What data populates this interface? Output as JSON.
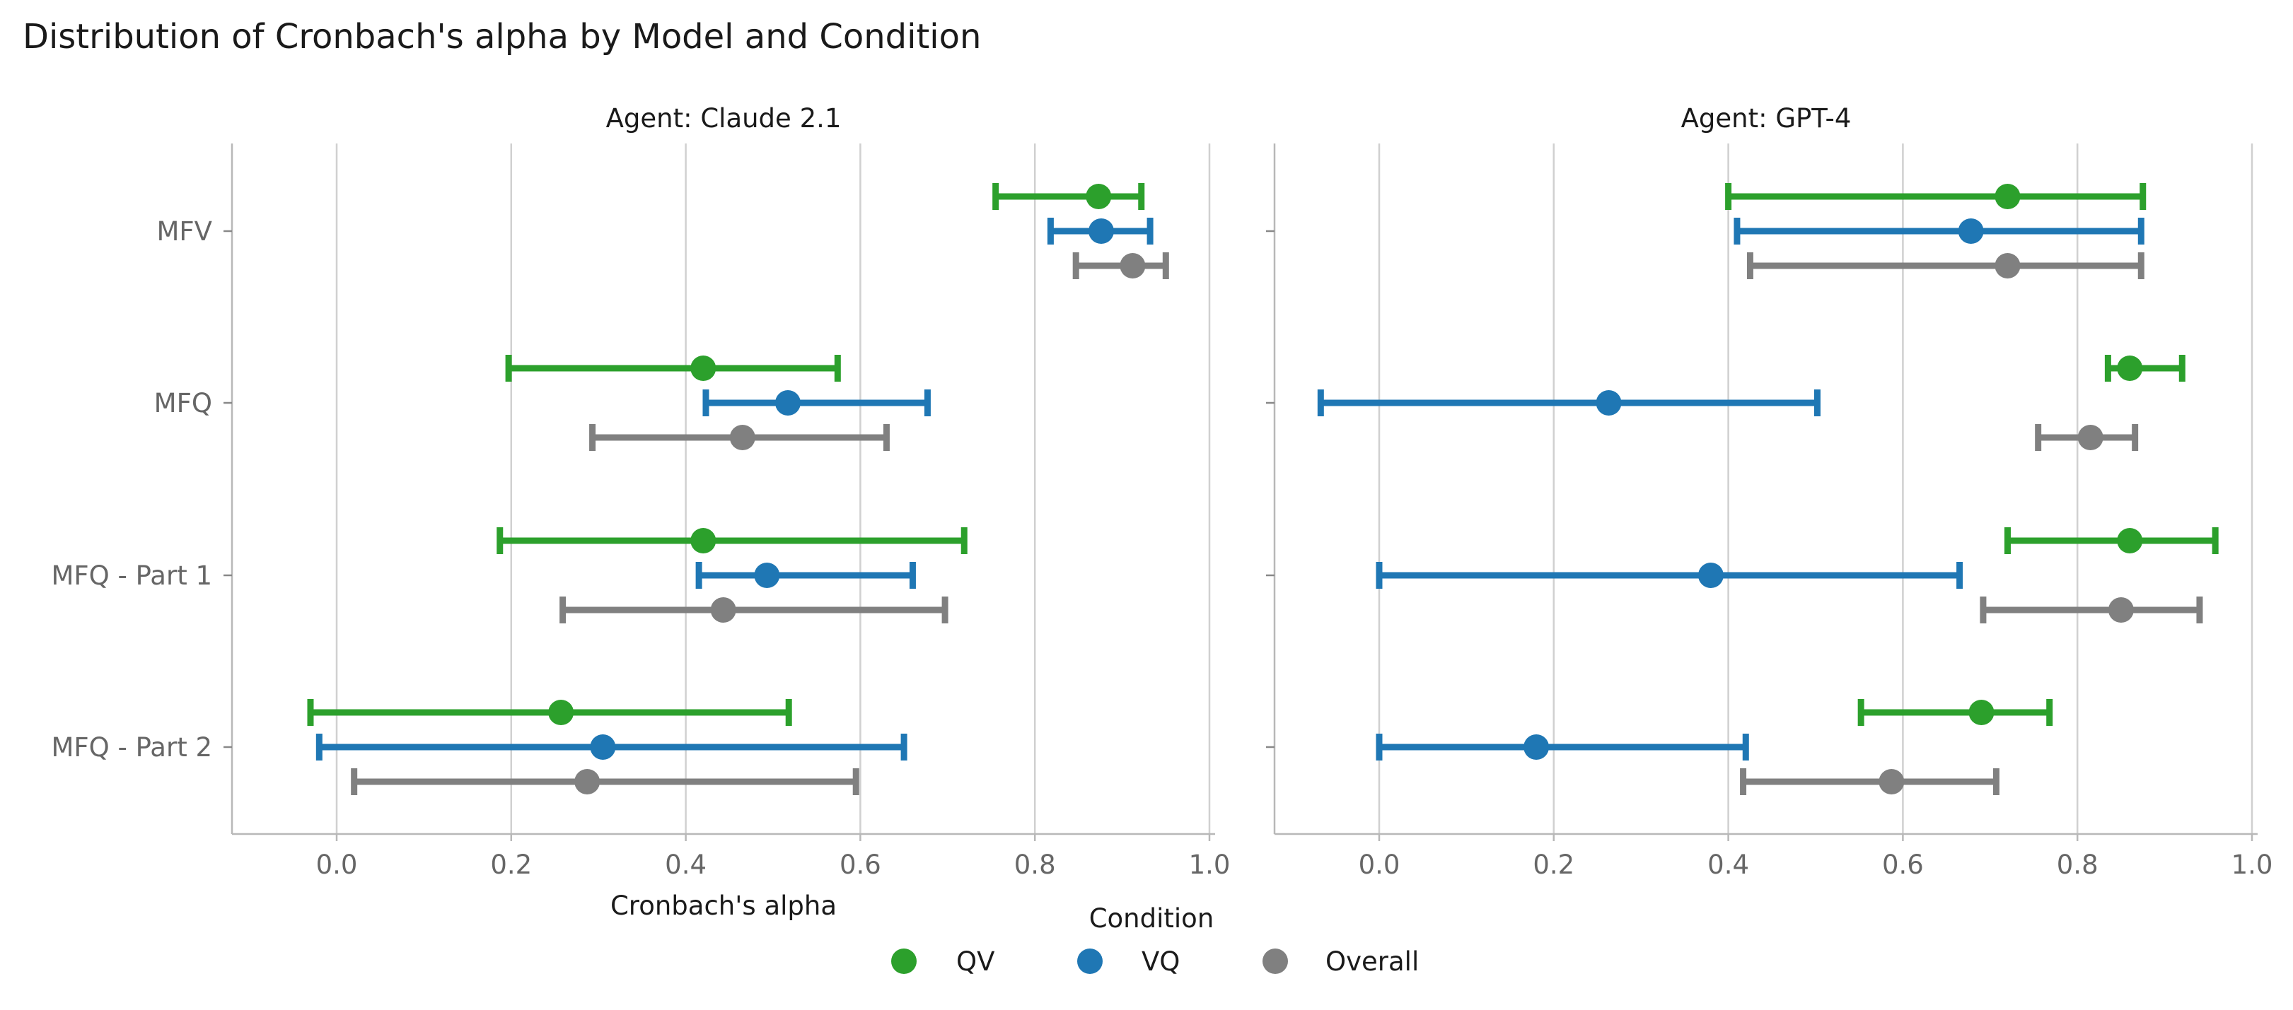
{
  "title": "Distribution of Cronbach's alpha by Model and Condition",
  "legend": {
    "title": "Condition",
    "placement": "bottom-center"
  },
  "chart_data": {
    "type": "errorbar",
    "title": "Distribution of Cronbach's alpha by Model and Condition",
    "xlabel": "Cronbach's alpha",
    "xlim": [
      -0.12,
      1.0
    ],
    "x_ticks": [
      0.0,
      0.2,
      0.4,
      0.6,
      0.8,
      1.0
    ],
    "x_tick_labels": [
      "0.0",
      "0.2",
      "0.4",
      "0.6",
      "0.8",
      "1.0"
    ],
    "grid": "vertical",
    "categories": [
      "MFV",
      "MFQ",
      "MFQ - Part 1",
      "MFQ - Part 2"
    ],
    "conditions": [
      {
        "name": "QV",
        "color": "#2ca02c"
      },
      {
        "name": "VQ",
        "color": "#1f77b4"
      },
      {
        "name": "Overall",
        "color": "#808080"
      }
    ],
    "panels": [
      {
        "title": "Agent: Claude 2.1",
        "series": [
          {
            "name": "QV",
            "points": [
              {
                "category": "MFV",
                "mean": 0.873,
                "low": 0.755,
                "high": 0.922
              },
              {
                "category": "MFQ",
                "mean": 0.42,
                "low": 0.197,
                "high": 0.574
              },
              {
                "category": "MFQ - Part 1",
                "mean": 0.42,
                "low": 0.187,
                "high": 0.719
              },
              {
                "category": "MFQ - Part 2",
                "mean": 0.257,
                "low": -0.03,
                "high": 0.518
              }
            ]
          },
          {
            "name": "VQ",
            "points": [
              {
                "category": "MFV",
                "mean": 0.876,
                "low": 0.818,
                "high": 0.932
              },
              {
                "category": "MFQ",
                "mean": 0.517,
                "low": 0.423,
                "high": 0.677
              },
              {
                "category": "MFQ - Part 1",
                "mean": 0.493,
                "low": 0.415,
                "high": 0.66
              },
              {
                "category": "MFQ - Part 2",
                "mean": 0.305,
                "low": -0.02,
                "high": 0.65
              }
            ]
          },
          {
            "name": "Overall",
            "points": [
              {
                "category": "MFV",
                "mean": 0.912,
                "low": 0.847,
                "high": 0.95
              },
              {
                "category": "MFQ",
                "mean": 0.465,
                "low": 0.293,
                "high": 0.63
              },
              {
                "category": "MFQ - Part 1",
                "mean": 0.443,
                "low": 0.259,
                "high": 0.697
              },
              {
                "category": "MFQ - Part 2",
                "mean": 0.287,
                "low": 0.02,
                "high": 0.595
              }
            ]
          }
        ]
      },
      {
        "title": "Agent: GPT-4",
        "series": [
          {
            "name": "QV",
            "points": [
              {
                "category": "MFV",
                "mean": 0.72,
                "low": 0.4,
                "high": 0.875
              },
              {
                "category": "MFQ",
                "mean": 0.86,
                "low": 0.835,
                "high": 0.92
              },
              {
                "category": "MFQ - Part 1",
                "mean": 0.86,
                "low": 0.72,
                "high": 0.958
              },
              {
                "category": "MFQ - Part 2",
                "mean": 0.69,
                "low": 0.552,
                "high": 0.768
              }
            ]
          },
          {
            "name": "VQ",
            "points": [
              {
                "category": "MFV",
                "mean": 0.678,
                "low": 0.41,
                "high": 0.873
              },
              {
                "category": "MFQ",
                "mean": 0.263,
                "low": -0.067,
                "high": 0.502
              },
              {
                "category": "MFQ - Part 1",
                "mean": 0.38,
                "low": 0.0,
                "high": 0.665
              },
              {
                "category": "MFQ - Part 2",
                "mean": 0.18,
                "low": 0.0,
                "high": 0.42
              }
            ]
          },
          {
            "name": "Overall",
            "points": [
              {
                "category": "MFV",
                "mean": 0.72,
                "low": 0.425,
                "high": 0.873
              },
              {
                "category": "MFQ",
                "mean": 0.815,
                "low": 0.755,
                "high": 0.866
              },
              {
                "category": "MFQ - Part 1",
                "mean": 0.85,
                "low": 0.692,
                "high": 0.94
              },
              {
                "category": "MFQ - Part 2",
                "mean": 0.587,
                "low": 0.417,
                "high": 0.707
              }
            ]
          }
        ]
      }
    ]
  }
}
